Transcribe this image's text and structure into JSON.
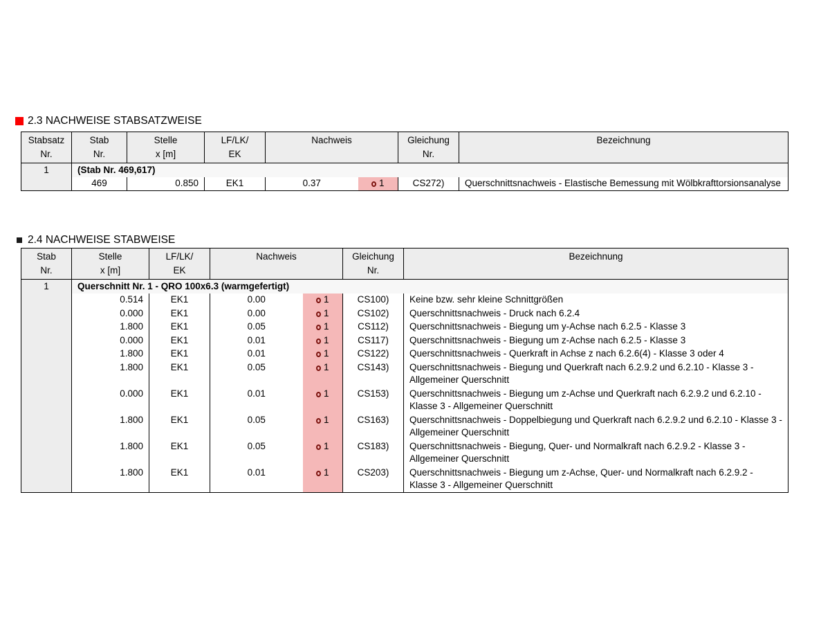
{
  "colors": {
    "highlight_bg": "#f5b8b8",
    "check_icon": "#7d1410",
    "header_bg": "#ededed",
    "first_col_bg": "#ededed",
    "group_row_bg": "#f7f7f7",
    "section23_bullet": "#fb0000",
    "section24_bullet": "#1a1a1a",
    "border": "#000000"
  },
  "section_23": {
    "title": "2.3 NACHWEISE STABSATZWEISE",
    "table": {
      "columns": [
        {
          "key": "stabsatz",
          "label": "Stabsatz",
          "sub": "Nr."
        },
        {
          "key": "stab",
          "label": "Stab",
          "sub": "Nr."
        },
        {
          "key": "stelle",
          "label": "Stelle",
          "sub": "x [m]"
        },
        {
          "key": "lf",
          "label": "LF/LK/",
          "sub": "EK"
        },
        {
          "key": "nachweis",
          "label": "Nachweis",
          "sub": "",
          "colspan": 2
        },
        {
          "key": "gleichung",
          "label": "Gleichung",
          "sub": "Nr."
        },
        {
          "key": "bezeichnung",
          "label": "Bezeichnung",
          "sub": ""
        }
      ],
      "stabsatz_nr": "1",
      "group_label": "(Stab Nr. 469,617)",
      "rows": [
        {
          "stab": "469",
          "stelle": "0.850",
          "lf": "EK1",
          "nachweis": "0.37",
          "flag": "1",
          "gleichung": "CS272)",
          "bezeichnung": "Querschnittsnachweis - Elastische Bemessung mit Wölbkrafttorsionsanalyse"
        }
      ]
    }
  },
  "section_24": {
    "title": "2.4 NACHWEISE STABWEISE",
    "table": {
      "columns": [
        {
          "key": "stab",
          "label": "Stab",
          "sub": "Nr."
        },
        {
          "key": "stelle",
          "label": "Stelle",
          "sub": "x [m]"
        },
        {
          "key": "lf",
          "label": "LF/LK/",
          "sub": "EK"
        },
        {
          "key": "nachweis",
          "label": "Nachweis",
          "sub": "",
          "colspan": 2
        },
        {
          "key": "gleichung",
          "label": "Gleichung",
          "sub": "Nr."
        },
        {
          "key": "bezeichnung",
          "label": "Bezeichnung",
          "sub": ""
        }
      ],
      "stab_nr": "1",
      "group_label": "Querschnitt Nr. 1 - QRO 100x6.3 (warmgefertigt)",
      "rows": [
        {
          "stelle": "0.514",
          "lf": "EK1",
          "nachweis": "0.00",
          "flag": "1",
          "gleichung": "CS100)",
          "bezeichnung": "Keine bzw. sehr kleine Schnittgrößen"
        },
        {
          "stelle": "0.000",
          "lf": "EK1",
          "nachweis": "0.00",
          "flag": "1",
          "gleichung": "CS102)",
          "bezeichnung": "Querschnittsnachweis - Druck nach 6.2.4"
        },
        {
          "stelle": "1.800",
          "lf": "EK1",
          "nachweis": "0.05",
          "flag": "1",
          "gleichung": "CS112)",
          "bezeichnung": "Querschnittsnachweis - Biegung um y-Achse nach 6.2.5 - Klasse 3"
        },
        {
          "stelle": "0.000",
          "lf": "EK1",
          "nachweis": "0.01",
          "flag": "1",
          "gleichung": "CS117)",
          "bezeichnung": "Querschnittsnachweis - Biegung um z-Achse nach 6.2.5 - Klasse 3"
        },
        {
          "stelle": "1.800",
          "lf": "EK1",
          "nachweis": "0.01",
          "flag": "1",
          "gleichung": "CS122)",
          "bezeichnung": "Querschnittsnachweis - Querkraft in Achse z nach 6.2.6(4) - Klasse 3 oder 4"
        },
        {
          "stelle": "1.800",
          "lf": "EK1",
          "nachweis": "0.05",
          "flag": "1",
          "gleichung": "CS143)",
          "bezeichnung": "Querschnittsnachweis - Biegung und Querkraft nach 6.2.9.2 und 6.2.10 - Klasse 3 - Allgemeiner Querschnitt"
        },
        {
          "stelle": "0.000",
          "lf": "EK1",
          "nachweis": "0.01",
          "flag": "1",
          "gleichung": "CS153)",
          "bezeichnung": "Querschnittsnachweis - Biegung um z-Achse und Querkraft nach 6.2.9.2 und 6.2.10 - Klasse 3 - Allgemeiner Querschnitt"
        },
        {
          "stelle": "1.800",
          "lf": "EK1",
          "nachweis": "0.05",
          "flag": "1",
          "gleichung": "CS163)",
          "bezeichnung": "Querschnittsnachweis - Doppelbiegung und Querkraft nach 6.2.9.2 und 6.2.10 - Klasse 3 - Allgemeiner Querschnitt"
        },
        {
          "stelle": "1.800",
          "lf": "EK1",
          "nachweis": "0.05",
          "flag": "1",
          "gleichung": "CS183)",
          "bezeichnung": "Querschnittsnachweis - Biegung, Quer- und Normalkraft nach 6.2.9.2 - Klasse 3 - Allgemeiner Querschnitt"
        },
        {
          "stelle": "1.800",
          "lf": "EK1",
          "nachweis": "0.01",
          "flag": "1",
          "gleichung": "CS203)",
          "bezeichnung": "Querschnittsnachweis - Biegung um z-Achse, Quer- und Normalkraft nach 6.2.9.2 - Klasse 3 - Allgemeiner Querschnitt"
        }
      ]
    }
  }
}
